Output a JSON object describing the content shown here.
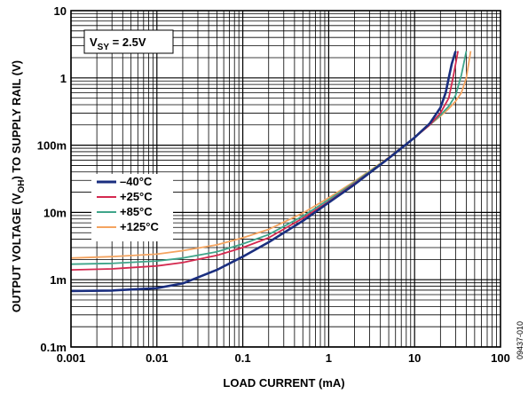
{
  "chart_data": {
    "type": "line",
    "x_scale": "log",
    "y_scale": "log",
    "xlabel": "LOAD CURRENT (mA)",
    "ylabel": {
      "prefix": "OUTPUT VOLTAGE (V",
      "subscript": "OH",
      "suffix": ") TO SUPPLY RAIL (V)"
    },
    "xlim": [
      0.001,
      100
    ],
    "ylim": [
      0.0001,
      10
    ],
    "x_ticks": [
      {
        "value": 0.001,
        "label": "0.001"
      },
      {
        "value": 0.01,
        "label": "0.01"
      },
      {
        "value": 0.1,
        "label": "0.1"
      },
      {
        "value": 1,
        "label": "1"
      },
      {
        "value": 10,
        "label": "10"
      },
      {
        "value": 100,
        "label": "100"
      }
    ],
    "y_ticks": [
      {
        "value": 0.0001,
        "label": "0.1m"
      },
      {
        "value": 0.001,
        "label": "1m"
      },
      {
        "value": 0.01,
        "label": "10m"
      },
      {
        "value": 0.1,
        "label": "100m"
      },
      {
        "value": 1,
        "label": "1"
      },
      {
        "value": 10,
        "label": "10"
      }
    ],
    "grid": "on",
    "annotation": {
      "prefix": "V",
      "subscript": "SY",
      "suffix": " = 2.5V"
    },
    "legend_position": "left-middle",
    "figure_id": "09437-010",
    "series": [
      {
        "name": "–40°C",
        "color": "#1a2e7f",
        "x": [
          0.001,
          0.003,
          0.01,
          0.02,
          0.05,
          0.1,
          0.2,
          0.5,
          1,
          2,
          5,
          10,
          15,
          20,
          23,
          25,
          27,
          30
        ],
        "y": [
          0.00068,
          0.00069,
          0.00075,
          0.00088,
          0.0014,
          0.0022,
          0.0036,
          0.0075,
          0.014,
          0.026,
          0.064,
          0.13,
          0.21,
          0.36,
          0.6,
          1.0,
          1.6,
          2.5
        ]
      },
      {
        "name": "+25°C",
        "color": "#d4294f",
        "x": [
          0.001,
          0.003,
          0.01,
          0.02,
          0.05,
          0.1,
          0.2,
          0.5,
          1,
          2,
          5,
          10,
          15,
          20,
          25,
          28,
          32
        ],
        "y": [
          0.0014,
          0.00145,
          0.0016,
          0.0018,
          0.0023,
          0.003,
          0.0042,
          0.0082,
          0.0145,
          0.027,
          0.064,
          0.13,
          0.2,
          0.3,
          0.5,
          1.0,
          2.5
        ]
      },
      {
        "name": "+85°C",
        "color": "#3fa58a",
        "x": [
          0.001,
          0.003,
          0.01,
          0.02,
          0.05,
          0.1,
          0.2,
          0.5,
          1,
          2,
          5,
          10,
          15,
          20,
          25,
          30,
          35,
          40
        ],
        "y": [
          0.0017,
          0.00175,
          0.0019,
          0.0021,
          0.0026,
          0.0034,
          0.0047,
          0.0088,
          0.0155,
          0.028,
          0.065,
          0.13,
          0.2,
          0.28,
          0.38,
          0.55,
          1.1,
          2.5
        ]
      },
      {
        "name": "+125°C",
        "color": "#f4a460",
        "x": [
          0.001,
          0.003,
          0.01,
          0.02,
          0.05,
          0.1,
          0.2,
          0.5,
          1,
          2,
          5,
          10,
          15,
          20,
          25,
          30,
          35,
          40,
          45
        ],
        "y": [
          0.0021,
          0.0022,
          0.0024,
          0.0027,
          0.0033,
          0.0042,
          0.0056,
          0.0098,
          0.0165,
          0.029,
          0.066,
          0.13,
          0.2,
          0.27,
          0.35,
          0.45,
          0.6,
          1.0,
          2.5
        ]
      }
    ]
  }
}
